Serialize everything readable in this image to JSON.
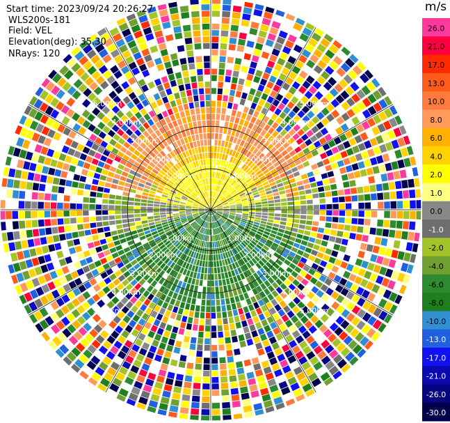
{
  "header": {
    "start_time": "Start time: 2023/09/24 20:26:27",
    "instrument": "WLS200s-181",
    "field": "Field: VEL",
    "elevation": "Elevation(deg): 35.30",
    "nrays": "NRays: 120"
  },
  "colorbar": {
    "unit": "m/s",
    "labels": [
      "26.0",
      "21.0",
      "17.0",
      "13.0",
      "10.0",
      "8.0",
      "6.0",
      "4.0",
      "2.0",
      "1.0",
      "0.0",
      "-1.0",
      "-2.0",
      "-4.0",
      "-6.0",
      "-8.0",
      "-10.0",
      "-13.0",
      "-17.0",
      "-21.0",
      "-26.0",
      "-30.0"
    ],
    "colors": [
      "#ff3a9e",
      "#ff0040",
      "#ff2a00",
      "#ff5b1a",
      "#ff7b3d",
      "#ff9a5a",
      "#ffb000",
      "#ffd200",
      "#ffff00",
      "#ffff80",
      "#888888",
      "#6e6e6e",
      "#a2c428",
      "#6fa030",
      "#2e8a2e",
      "#1f7f1f",
      "#2f8fd0",
      "#1f5fe0",
      "#1010f0",
      "#0a0ab0",
      "#050580",
      "#00004a"
    ]
  },
  "chart_data": {
    "type": "ppi-polar",
    "field": "VEL",
    "units": "m/s",
    "nrays": 120,
    "elevation_deg": 35.3,
    "max_range_km": 7.2,
    "range_ring_labels": [
      "1.00km",
      "2.00km",
      "3.00km",
      "4.00km",
      "5.00km"
    ],
    "near_field_pattern": [
      {
        "range_km": [
          0,
          1.7
        ],
        "sector": "north",
        "velocity_m_s": 2.0
      },
      {
        "range_km": [
          0,
          3.7
        ],
        "sector": "north",
        "velocity_m_s": 8.0
      },
      {
        "range_km": [
          0,
          3.7
        ],
        "sector": "east/west",
        "velocity_m_s": 0.0
      },
      {
        "range_km": [
          0,
          3.7
        ],
        "sector": "south",
        "velocity_m_s": -6.0
      }
    ],
    "outer_noise_from_km": 3.7
  }
}
